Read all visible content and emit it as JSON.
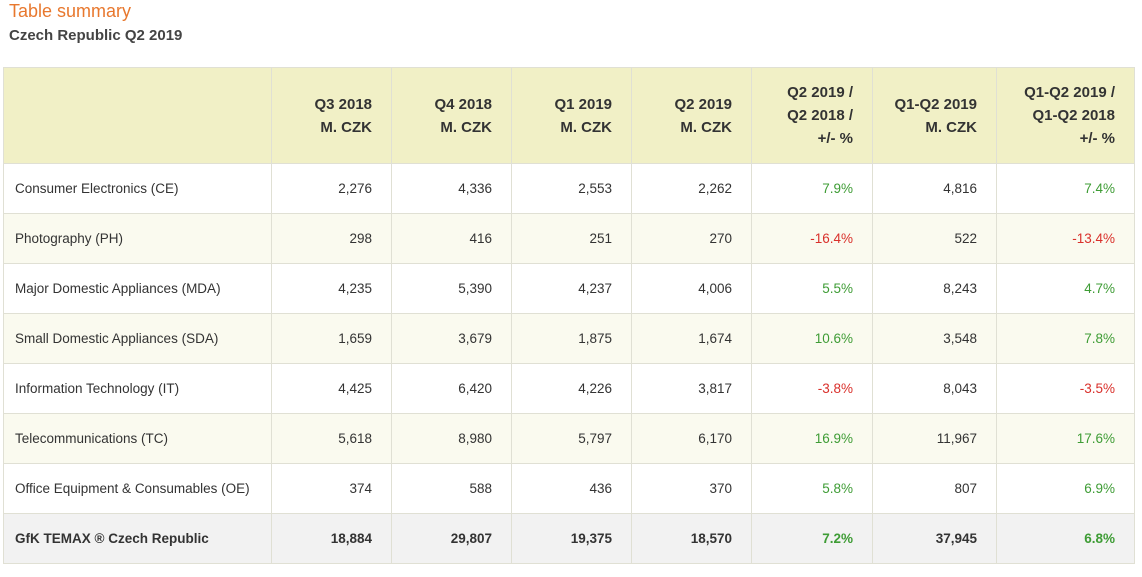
{
  "header": {
    "title": "Table summary",
    "subtitle": "Czech Republic Q2 2019"
  },
  "colors": {
    "title": "#e8782e",
    "header_bg": "#f1f0c6",
    "positive": "#3e9c35",
    "negative": "#d9302b"
  },
  "table": {
    "columns": [
      {
        "lines": []
      },
      {
        "lines": [
          "Q3 2018",
          "M. CZK"
        ]
      },
      {
        "lines": [
          "Q4 2018",
          "M. CZK"
        ]
      },
      {
        "lines": [
          "Q1 2019",
          "M. CZK"
        ]
      },
      {
        "lines": [
          "Q2 2019",
          "M. CZK"
        ]
      },
      {
        "lines": [
          "Q2 2019 /",
          "Q2 2018 /",
          "+/- %"
        ]
      },
      {
        "lines": [
          "Q1-Q2 2019",
          "M. CZK"
        ]
      },
      {
        "lines": [
          "Q1-Q2 2019 /",
          "Q1-Q2 2018",
          "+/- %"
        ]
      }
    ],
    "rows": [
      {
        "label": "Consumer Electronics (CE)",
        "values": [
          "2,276",
          "4,336",
          "2,553",
          "2,262",
          "7.9%",
          "4,816",
          "7.4%"
        ],
        "signs": [
          "pos",
          "pos"
        ]
      },
      {
        "label": "Photography (PH)",
        "values": [
          "298",
          "416",
          "251",
          "270",
          "-16.4%",
          "522",
          "-13.4%"
        ],
        "signs": [
          "neg",
          "neg"
        ]
      },
      {
        "label": "Major Domestic Appliances (MDA)",
        "values": [
          "4,235",
          "5,390",
          "4,237",
          "4,006",
          "5.5%",
          "8,243",
          "4.7%"
        ],
        "signs": [
          "pos",
          "pos"
        ]
      },
      {
        "label": "Small Domestic Appliances (SDA)",
        "values": [
          "1,659",
          "3,679",
          "1,875",
          "1,674",
          "10.6%",
          "3,548",
          "7.8%"
        ],
        "signs": [
          "pos",
          "pos"
        ]
      },
      {
        "label": "Information Technology (IT)",
        "values": [
          "4,425",
          "6,420",
          "4,226",
          "3,817",
          "-3.8%",
          "8,043",
          "-3.5%"
        ],
        "signs": [
          "neg",
          "neg"
        ]
      },
      {
        "label": "Telecommunications (TC)",
        "values": [
          "5,618",
          "8,980",
          "5,797",
          "6,170",
          "16.9%",
          "11,967",
          "17.6%"
        ],
        "signs": [
          "pos",
          "pos"
        ]
      },
      {
        "label": "Office Equipment & Consumables (OE)",
        "values": [
          "374",
          "588",
          "436",
          "370",
          "5.8%",
          "807",
          "6.9%"
        ],
        "signs": [
          "pos",
          "pos"
        ]
      }
    ],
    "total": {
      "label": "GfK TEMAX ® Czech Republic",
      "values": [
        "18,884",
        "29,807",
        "19,375",
        "18,570",
        "7.2%",
        "37,945",
        "6.8%"
      ],
      "signs": [
        "pos",
        "pos"
      ]
    }
  }
}
